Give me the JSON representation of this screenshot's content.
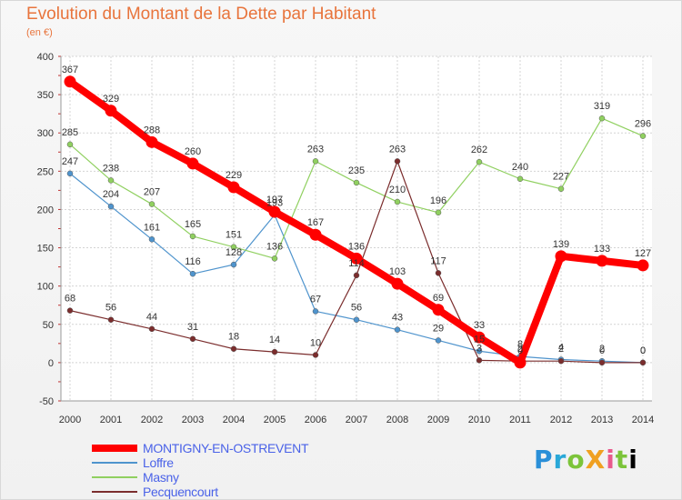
{
  "title": "Evolution du Montant de la Dette par Habitant",
  "subtitle": "(en €)",
  "logo": "ProXiti",
  "chart_data": {
    "type": "line",
    "x": [
      "2000",
      "2001",
      "2002",
      "2003",
      "2004",
      "2005",
      "2006",
      "2007",
      "2008",
      "2009",
      "2010",
      "2011",
      "2012",
      "2013",
      "2014"
    ],
    "ylim": [
      -50,
      400
    ],
    "yticks": [
      -50,
      0,
      50,
      100,
      150,
      200,
      250,
      300,
      350,
      400
    ],
    "grid": true,
    "legend_position": "bottom-left",
    "series": [
      {
        "name": "MONTIGNY-EN-OSTREVENT",
        "color": "#ff0000",
        "values": [
          367,
          329,
          288,
          260,
          229,
          197,
          167,
          136,
          103,
          69,
          33,
          0,
          139,
          133,
          127
        ],
        "labels": [
          "367",
          "329",
          "288",
          "260",
          "229",
          "197",
          "167",
          "136",
          "103",
          "69",
          "33",
          "0",
          "139",
          "133",
          "127"
        ]
      },
      {
        "name": "Loffre",
        "color": "#4f94cd",
        "values": [
          247,
          204,
          161,
          116,
          128,
          193,
          67,
          56,
          43,
          29,
          15,
          8,
          4,
          2,
          0
        ],
        "labels": [
          "247",
          "204",
          "161",
          "116",
          "128",
          "193",
          "67",
          "56",
          "43",
          "29",
          "15",
          "8",
          "4",
          "2",
          "0"
        ]
      },
      {
        "name": "Masny",
        "color": "#90d060",
        "values": [
          285,
          238,
          207,
          165,
          151,
          136,
          263,
          235,
          210,
          196,
          262,
          240,
          227,
          319,
          296
        ],
        "labels": [
          "285",
          "238",
          "207",
          "165",
          "151",
          "136",
          "263",
          "235",
          "210",
          "196",
          "262",
          "240",
          "227",
          "319",
          "296"
        ]
      },
      {
        "name": "Pecquencourt",
        "color": "#7b2d2d",
        "values": [
          68,
          56,
          44,
          31,
          18,
          14,
          10,
          114,
          263,
          117,
          3,
          2,
          2,
          0,
          0
        ],
        "labels": [
          "68",
          "56",
          "44",
          "31",
          "18",
          "14",
          "10",
          "114",
          "263",
          "117",
          "3",
          "2",
          "2",
          "0",
          "0"
        ]
      }
    ]
  }
}
